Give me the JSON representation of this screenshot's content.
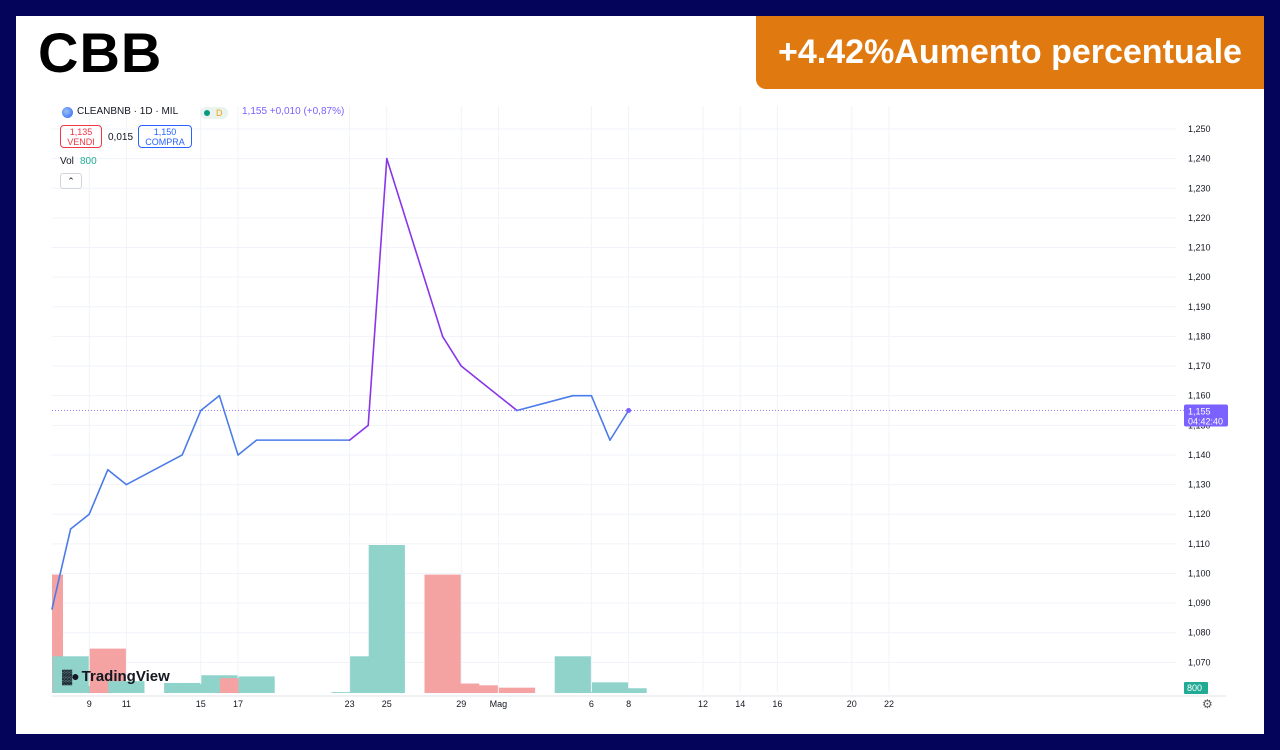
{
  "ticker": "CBB",
  "badge": "+4.42%Aumento percentuale",
  "header": {
    "symbol": "CLEANBNB · 1D · MIL",
    "delay_flag": "D",
    "price_info": "1,155  +0,010 (+0,87%)",
    "sell_price": "1,135",
    "sell_label": "VENDI",
    "spread": "0,015",
    "buy_price": "1,150",
    "buy_label": "COMPRA",
    "vol_label": "Vol",
    "vol_value": "800"
  },
  "branding": "TradingView",
  "colors": {
    "line": "#4a7be8",
    "line_spike": "#8a35e8",
    "vol_up": "#8fd3ca",
    "vol_down": "#f4a3a2",
    "price_label": "#7b61ff",
    "vol_label_bg": "#22ab94"
  },
  "chart_data": {
    "type": "line",
    "x": [
      "Apr 7",
      "Apr 8",
      "Apr 9",
      "Apr 10",
      "Apr 11",
      "Apr 14",
      "Apr 15",
      "Apr 16",
      "Apr 17",
      "Apr 18",
      "Apr 23",
      "Apr 24",
      "Apr 25",
      "Apr 28",
      "Apr 29",
      "Apr 30",
      "May 2",
      "May 5",
      "May 6",
      "May 7",
      "May 8"
    ],
    "y": [
      1.088,
      1.115,
      1.12,
      1.135,
      1.13,
      1.14,
      1.155,
      1.16,
      1.14,
      1.145,
      1.145,
      1.15,
      1.24,
      1.18,
      1.17,
      1.165,
      1.155,
      1.16,
      1.16,
      1.145,
      1.155
    ],
    "volume": {
      "values": [
        20000,
        6200,
        1200,
        7500,
        2000,
        1700,
        1500,
        3000,
        2500,
        2800,
        150,
        6200,
        25000,
        20000,
        1600,
        1300,
        900,
        6200,
        150,
        1800,
        800
      ],
      "direction": [
        "down",
        "up",
        "up",
        "down",
        "up",
        "up",
        "up",
        "up",
        "down",
        "up",
        "up",
        "up",
        "up",
        "down",
        "down",
        "down",
        "down",
        "up",
        "up",
        "up",
        "up"
      ]
    },
    "y_ticks": [
      "1,250",
      "1,240",
      "1,230",
      "1,220",
      "1,210",
      "1,200",
      "1,190",
      "1,180",
      "1,170",
      "1,160",
      "1,150",
      "1,140",
      "1,130",
      "1,120",
      "1,110",
      "1,100",
      "1,090",
      "1,080",
      "1,070"
    ],
    "x_ticks": [
      "9",
      "11",
      "15",
      "17",
      "23",
      "25",
      "29",
      "Mag",
      "6",
      "8",
      "12",
      "14",
      "16",
      "20",
      "22"
    ],
    "ylim": [
      1.06,
      1.25
    ],
    "last_price_label": "1,155",
    "countdown_label": "04:42:40",
    "volume_label": "800",
    "grid": true
  }
}
